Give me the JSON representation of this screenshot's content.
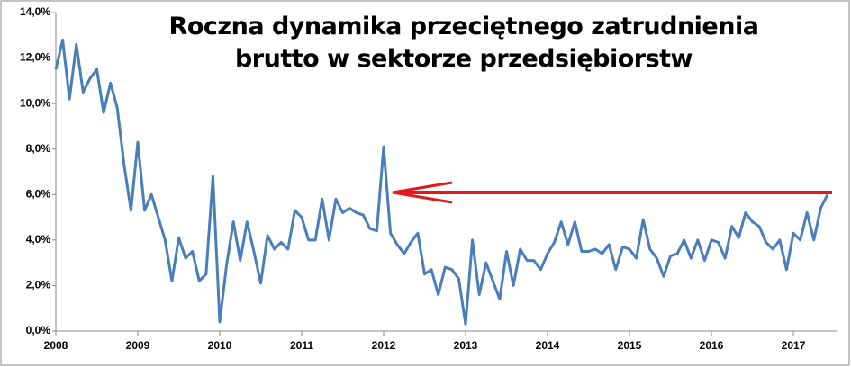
{
  "chart_data": {
    "type": "line",
    "title": "Roczna dynamika przeciętnego zatrudnienia brutto w sektorze przedsiębiorstw",
    "categories": [
      "2008",
      null,
      null,
      null,
      null,
      null,
      null,
      null,
      null,
      null,
      null,
      null,
      "2009",
      null,
      null,
      null,
      null,
      null,
      null,
      null,
      null,
      null,
      null,
      null,
      "2010",
      null,
      null,
      null,
      null,
      null,
      null,
      null,
      null,
      null,
      null,
      null,
      "2011",
      null,
      null,
      null,
      null,
      null,
      null,
      null,
      null,
      null,
      null,
      null,
      "2012",
      null,
      null,
      null,
      null,
      null,
      null,
      null,
      null,
      null,
      null,
      null,
      "2013",
      null,
      null,
      null,
      null,
      null,
      null,
      null,
      null,
      null,
      null,
      null,
      "2014",
      null,
      null,
      null,
      null,
      null,
      null,
      null,
      null,
      null,
      null,
      null,
      "2015",
      null,
      null,
      null,
      null,
      null,
      null,
      null,
      null,
      null,
      null,
      null,
      "2016",
      null,
      null,
      null,
      null,
      null,
      null,
      null,
      null,
      null,
      null,
      null,
      "2017",
      null,
      null,
      null,
      null,
      null
    ],
    "series": [
      {
        "color": "#4a7ebb",
        "values": [
          11.5,
          12.8,
          10.2,
          12.6,
          10.5,
          11.1,
          11.5,
          9.6,
          10.9,
          9.8,
          7.3,
          5.3,
          8.3,
          5.3,
          6.0,
          5.0,
          4.0,
          2.2,
          4.1,
          3.2,
          3.5,
          2.2,
          2.5,
          6.8,
          0.4,
          2.9,
          4.8,
          3.1,
          4.8,
          3.5,
          2.1,
          4.2,
          3.6,
          3.9,
          3.6,
          5.3,
          5.0,
          4.0,
          4.0,
          5.8,
          4.0,
          5.8,
          5.2,
          5.4,
          5.2,
          5.1,
          4.5,
          4.4,
          8.1,
          4.3,
          3.8,
          3.4,
          3.9,
          4.3,
          2.5,
          2.7,
          1.6,
          2.8,
          2.7,
          2.3,
          0.3,
          4.0,
          1.6,
          3.0,
          2.2,
          1.4,
          3.5,
          2.0,
          3.6,
          3.1,
          3.1,
          2.7,
          3.4,
          3.9,
          4.8,
          3.8,
          4.8,
          3.5,
          3.5,
          3.6,
          3.4,
          3.8,
          2.7,
          3.7,
          3.6,
          3.2,
          4.9,
          3.6,
          3.2,
          2.4,
          3.3,
          3.4,
          4.0,
          3.2,
          4.0,
          3.1,
          4.0,
          3.9,
          3.2,
          4.6,
          4.1,
          5.2,
          4.8,
          4.6,
          3.9,
          3.6,
          4.0,
          2.7,
          4.3,
          4.0,
          5.2,
          4.0,
          5.4,
          6.0
        ]
      }
    ],
    "ylim": [
      0,
      14
    ],
    "yticks": [
      {
        "value": 0,
        "label": "0,0%"
      },
      {
        "value": 2,
        "label": "2,0%"
      },
      {
        "value": 4,
        "label": "4,0%"
      },
      {
        "value": 6,
        "label": "6,0%"
      },
      {
        "value": 8,
        "label": "8,0%"
      },
      {
        "value": 10,
        "label": "10,0%"
      },
      {
        "value": 12,
        "label": "12,0%"
      },
      {
        "value": 14,
        "label": "14,0%"
      }
    ],
    "grid": false
  }
}
